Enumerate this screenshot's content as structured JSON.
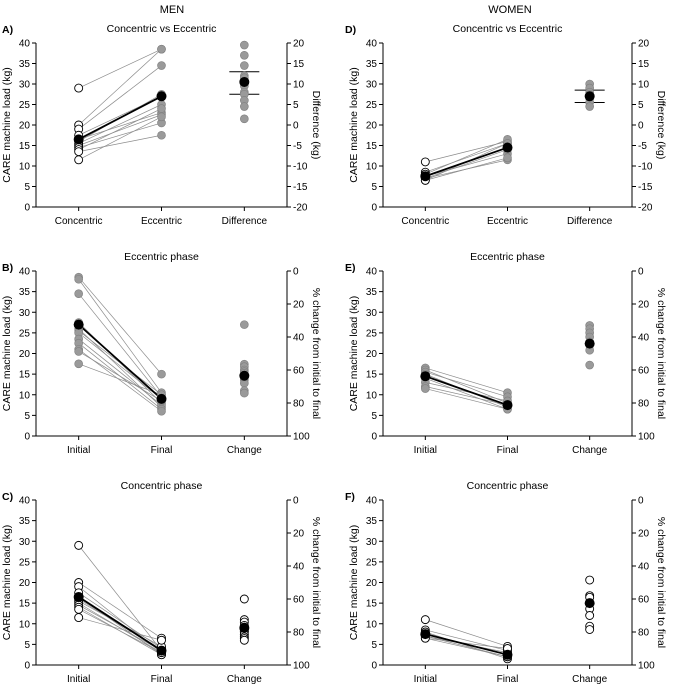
{
  "figure": {
    "left_header": "MEN",
    "right_header": "WOMEN",
    "left_axis_label": "CARE machine load (kg)"
  },
  "chart_data": [
    {
      "id": "A",
      "panel_label": "A)",
      "type": "scatter",
      "title": "Concentric vs Eccentric",
      "categories": [
        "Concentric",
        "Eccentric",
        "Difference"
      ],
      "ylabel": "CARE machine load (kg)",
      "ylim": [
        0,
        40
      ],
      "yticks": [
        0,
        5,
        10,
        15,
        20,
        25,
        30,
        35,
        40
      ],
      "y2label": "Difference (kg)",
      "y2lim": [
        -20,
        20
      ],
      "y2ticks": [
        -20,
        -15,
        -10,
        -5,
        0,
        5,
        10,
        15,
        20
      ],
      "paired_series": {
        "from_category": "Concentric",
        "to_category": "Eccentric",
        "from_marker": "open",
        "to_marker": "gray",
        "pairs": [
          [
            29.0,
            38.5
          ],
          [
            20.0,
            38.5
          ],
          [
            19.0,
            34.5
          ],
          [
            17.5,
            27.0
          ],
          [
            16.5,
            23.0
          ],
          [
            16.0,
            27.5
          ],
          [
            15.5,
            25.0
          ],
          [
            15.0,
            22.5
          ],
          [
            14.5,
            20.5
          ],
          [
            14.0,
            24.0
          ],
          [
            13.5,
            17.5
          ],
          [
            11.5,
            22.0
          ]
        ],
        "mean": [
          16.5,
          27.0
        ]
      },
      "point_series": {
        "category": "Difference",
        "axis": "right",
        "marker": "gray",
        "values": [
          19.5,
          17.0,
          14.5,
          12.0,
          11.5,
          10.5,
          9.5,
          8.0,
          7.5,
          6.0,
          4.5,
          1.5
        ],
        "mean": 10.5,
        "ci": [
          7.5,
          13.0
        ]
      }
    },
    {
      "id": "B",
      "panel_label": "B)",
      "type": "scatter",
      "title": "Eccentric phase",
      "categories": [
        "Initial",
        "Final",
        "Change"
      ],
      "ylabel": "CARE machine load (kg)",
      "ylim": [
        0,
        40
      ],
      "yticks": [
        0,
        5,
        10,
        15,
        20,
        25,
        30,
        35,
        40
      ],
      "y2label": "% change from initial to final",
      "y2lim": [
        0,
        100
      ],
      "y2_inverted": true,
      "y2ticks": [
        0,
        20,
        40,
        60,
        80,
        100
      ],
      "paired_series": {
        "from_category": "Initial",
        "to_category": "Final",
        "from_marker": "gray",
        "to_marker": "gray",
        "pairs": [
          [
            38.5,
            15.0
          ],
          [
            38.0,
            10.5
          ],
          [
            34.5,
            9.5
          ],
          [
            27.5,
            8.0
          ],
          [
            26.0,
            7.0
          ],
          [
            25.5,
            10.0
          ],
          [
            25.0,
            9.0
          ],
          [
            23.5,
            7.5
          ],
          [
            22.5,
            6.5
          ],
          [
            21.0,
            6.0
          ],
          [
            20.5,
            8.5
          ],
          [
            17.5,
            10.0
          ]
        ],
        "mean": [
          27.0,
          9.0
        ]
      },
      "point_series": {
        "category": "Change",
        "axis": "right",
        "marker": "gray",
        "values": [
          32.5,
          56.5,
          58.0,
          60.0,
          61.0,
          62.0,
          63.5,
          65.0,
          66.0,
          68.0,
          72.5,
          74.0
        ],
        "mean": 63.5
      }
    },
    {
      "id": "C",
      "panel_label": "C)",
      "type": "scatter",
      "title": "Concentric phase",
      "categories": [
        "Initial",
        "Final",
        "Change"
      ],
      "ylabel": "CARE machine load (kg)",
      "ylim": [
        0,
        40
      ],
      "yticks": [
        0,
        5,
        10,
        15,
        20,
        25,
        30,
        35,
        40
      ],
      "y2label": "% change from initial to final",
      "y2lim": [
        0,
        100
      ],
      "y2_inverted": true,
      "y2ticks": [
        0,
        20,
        40,
        60,
        80,
        100
      ],
      "paired_series": {
        "from_category": "Initial",
        "to_category": "Final",
        "from_marker": "open",
        "to_marker": "open",
        "pairs": [
          [
            29.0,
            3.5
          ],
          [
            20.0,
            6.5
          ],
          [
            19.0,
            3.0
          ],
          [
            17.5,
            4.0
          ],
          [
            16.5,
            2.5
          ],
          [
            16.0,
            3.5
          ],
          [
            15.5,
            4.5
          ],
          [
            15.0,
            3.0
          ],
          [
            14.5,
            3.5
          ],
          [
            14.0,
            2.5
          ],
          [
            13.5,
            3.0
          ],
          [
            11.5,
            6.0
          ]
        ],
        "mean": [
          16.5,
          3.5
        ]
      },
      "point_series": {
        "category": "Change",
        "axis": "right",
        "marker": "open",
        "values": [
          60.0,
          72.5,
          74.0,
          76.0,
          77.0,
          78.0,
          79.5,
          80.0,
          81.5,
          83.0,
          84.0,
          85.0
        ],
        "mean": 77.5
      }
    },
    {
      "id": "D",
      "panel_label": "D)",
      "type": "scatter",
      "title": "Concentric vs Eccentric",
      "categories": [
        "Concentric",
        "Eccentric",
        "Difference"
      ],
      "ylabel": "CARE machine load (kg)",
      "ylim": [
        0,
        40
      ],
      "yticks": [
        0,
        5,
        10,
        15,
        20,
        25,
        30,
        35,
        40
      ],
      "y2label": "Difference (kg)",
      "y2lim": [
        -20,
        20
      ],
      "y2ticks": [
        -20,
        -15,
        -10,
        -5,
        0,
        5,
        10,
        15,
        20
      ],
      "paired_series": {
        "from_category": "Concentric",
        "to_category": "Eccentric",
        "from_marker": "open",
        "to_marker": "gray",
        "pairs": [
          [
            11.0,
            16.0
          ],
          [
            8.5,
            15.5
          ],
          [
            8.0,
            16.5
          ],
          [
            7.5,
            13.0
          ],
          [
            7.0,
            11.5
          ],
          [
            7.0,
            14.0
          ],
          [
            6.5,
            15.5
          ],
          [
            6.5,
            12.0
          ]
        ],
        "mean": [
          7.5,
          14.5
        ]
      },
      "point_series": {
        "category": "Difference",
        "axis": "right",
        "marker": "gray",
        "values": [
          10.0,
          9.0,
          8.0,
          7.5,
          7.0,
          6.5,
          5.5,
          4.5
        ],
        "mean": 7.0,
        "ci": [
          5.5,
          8.5
        ]
      }
    },
    {
      "id": "E",
      "panel_label": "E)",
      "type": "scatter",
      "title": "Eccentric phase",
      "categories": [
        "Initial",
        "Final",
        "Change"
      ],
      "ylabel": "CARE machine load (kg)",
      "ylim": [
        0,
        40
      ],
      "yticks": [
        0,
        5,
        10,
        15,
        20,
        25,
        30,
        35,
        40
      ],
      "y2label": "% change from initial to final",
      "y2lim": [
        0,
        100
      ],
      "y2_inverted": true,
      "y2ticks": [
        0,
        20,
        40,
        60,
        80,
        100
      ],
      "paired_series": {
        "from_category": "Initial",
        "to_category": "Final",
        "from_marker": "gray",
        "to_marker": "gray",
        "pairs": [
          [
            16.5,
            10.5
          ],
          [
            16.0,
            8.0
          ],
          [
            15.5,
            9.5
          ],
          [
            15.0,
            7.0
          ],
          [
            14.0,
            6.5
          ],
          [
            13.0,
            8.5
          ],
          [
            12.0,
            7.5
          ],
          [
            11.5,
            6.5
          ]
        ],
        "mean": [
          14.5,
          7.5
        ]
      },
      "point_series": {
        "category": "Change",
        "axis": "right",
        "marker": "gray",
        "values": [
          33.0,
          35.0,
          37.5,
          40.0,
          43.0,
          45.0,
          48.0,
          57.0
        ],
        "mean": 44.0
      }
    },
    {
      "id": "F",
      "panel_label": "F)",
      "type": "scatter",
      "title": "Concentric phase",
      "categories": [
        "Initial",
        "Final",
        "Change"
      ],
      "ylabel": "CARE machine load (kg)",
      "ylim": [
        0,
        40
      ],
      "yticks": [
        0,
        5,
        10,
        15,
        20,
        25,
        30,
        35,
        40
      ],
      "y2label": "% change from initial to final",
      "y2lim": [
        0,
        100
      ],
      "y2_inverted": true,
      "y2ticks": [
        0,
        20,
        40,
        60,
        80,
        100
      ],
      "paired_series": {
        "from_category": "Initial",
        "to_category": "Final",
        "from_marker": "open",
        "to_marker": "open",
        "pairs": [
          [
            11.0,
            4.5
          ],
          [
            8.5,
            3.5
          ],
          [
            8.0,
            1.5
          ],
          [
            7.5,
            2.5
          ],
          [
            7.0,
            2.0
          ],
          [
            7.0,
            3.0
          ],
          [
            6.5,
            4.0
          ],
          [
            6.5,
            2.0
          ]
        ],
        "mean": [
          7.5,
          2.5
        ]
      },
      "point_series": {
        "category": "Change",
        "axis": "right",
        "marker": "open",
        "values": [
          48.5,
          58.0,
          59.0,
          62.5,
          66.0,
          70.0,
          76.5,
          78.5
        ],
        "mean": 62.5
      }
    }
  ],
  "colors": {
    "open_fill": "#ffffff",
    "gray_fill": "#9a9a9a",
    "mean_fill": "#000000",
    "thin_line": "#8c8c8c",
    "mean_line": "#000000",
    "axis": "#000000"
  }
}
